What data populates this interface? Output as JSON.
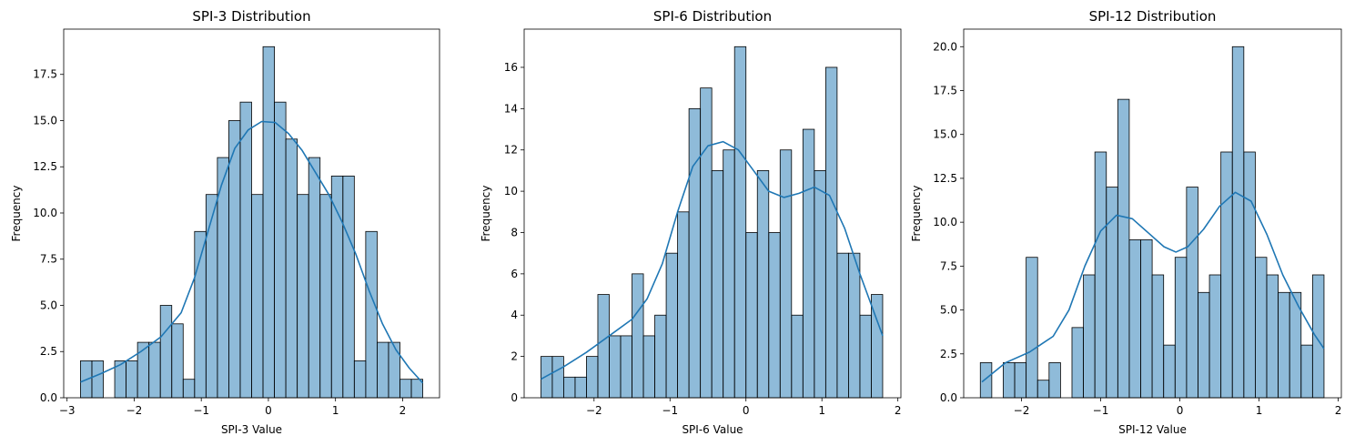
{
  "chart_data": [
    {
      "type": "histogram",
      "title": "SPI-3 Distribution",
      "xlabel": "SPI-3 Value",
      "ylabel": "Frequency",
      "xlim": [
        -3.05,
        2.55
      ],
      "ylim": [
        0,
        19.95
      ],
      "xticks": [
        -3,
        -2,
        -1,
        0,
        1,
        2
      ],
      "yticks": [
        0,
        2.5,
        5,
        7.5,
        10,
        12.5,
        15,
        17.5
      ],
      "bin_start": -2.8,
      "bin_width": 0.17,
      "counts": [
        2,
        2,
        0,
        2,
        2,
        3,
        3,
        5,
        4,
        1,
        9,
        11,
        13,
        15,
        16,
        11,
        19,
        16,
        14,
        11,
        13,
        11,
        12,
        12,
        2,
        9,
        3,
        3,
        1,
        1
      ],
      "kde": [
        [
          -2.8,
          0.85
        ],
        [
          -2.5,
          1.3
        ],
        [
          -2.2,
          1.8
        ],
        [
          -1.9,
          2.5
        ],
        [
          -1.6,
          3.3
        ],
        [
          -1.3,
          4.6
        ],
        [
          -1.1,
          6.5
        ],
        [
          -0.9,
          9.0
        ],
        [
          -0.7,
          11.5
        ],
        [
          -0.5,
          13.5
        ],
        [
          -0.3,
          14.5
        ],
        [
          -0.1,
          14.95
        ],
        [
          0.1,
          14.9
        ],
        [
          0.3,
          14.3
        ],
        [
          0.5,
          13.4
        ],
        [
          0.7,
          12.2
        ],
        [
          0.9,
          11.0
        ],
        [
          1.1,
          9.5
        ],
        [
          1.3,
          7.8
        ],
        [
          1.5,
          5.8
        ],
        [
          1.7,
          4.0
        ],
        [
          1.9,
          2.6
        ],
        [
          2.1,
          1.6
        ],
        [
          2.3,
          0.8
        ]
      ],
      "bar_color": "#1f77b4",
      "line_color": "#1f77b4"
    },
    {
      "type": "histogram",
      "title": "SPI-6 Distribution",
      "xlabel": "SPI-6 Value",
      "ylabel": "Frequency",
      "xlim": [
        -2.92,
        2.04
      ],
      "ylim": [
        0,
        17.85
      ],
      "xticks": [
        -2,
        -1,
        0,
        1,
        2
      ],
      "yticks": [
        0,
        2,
        4,
        6,
        8,
        10,
        12,
        14,
        16
      ],
      "bin_start": -2.7,
      "bin_width": 0.15,
      "counts": [
        2,
        2,
        1,
        1,
        2,
        5,
        3,
        3,
        6,
        3,
        4,
        7,
        9,
        14,
        15,
        11,
        12,
        17,
        8,
        11,
        8,
        12,
        4,
        13,
        11,
        16,
        7,
        7,
        4,
        5
      ],
      "kde": [
        [
          -2.7,
          0.9
        ],
        [
          -2.4,
          1.5
        ],
        [
          -2.1,
          2.2
        ],
        [
          -1.8,
          3.0
        ],
        [
          -1.5,
          3.8
        ],
        [
          -1.3,
          4.8
        ],
        [
          -1.1,
          6.5
        ],
        [
          -0.9,
          9.0
        ],
        [
          -0.7,
          11.2
        ],
        [
          -0.5,
          12.2
        ],
        [
          -0.3,
          12.4
        ],
        [
          -0.1,
          12.0
        ],
        [
          0.1,
          11.0
        ],
        [
          0.3,
          10.0
        ],
        [
          0.5,
          9.7
        ],
        [
          0.7,
          9.9
        ],
        [
          0.9,
          10.2
        ],
        [
          1.1,
          9.8
        ],
        [
          1.3,
          8.2
        ],
        [
          1.5,
          6.0
        ],
        [
          1.7,
          4.0
        ],
        [
          1.8,
          3.0
        ]
      ],
      "bar_color": "#1f77b4",
      "line_color": "#1f77b4"
    },
    {
      "type": "histogram",
      "title": "SPI-12 Distribution",
      "xlabel": "SPI-12 Value",
      "ylabel": "Frequency",
      "xlim": [
        -2.73,
        2.04
      ],
      "ylim": [
        0,
        21.0
      ],
      "xticks": [
        -2,
        -1,
        0,
        1,
        2
      ],
      "yticks": [
        0,
        2.5,
        5,
        7.5,
        10,
        12.5,
        15,
        17.5,
        20
      ],
      "bin_start": -2.52,
      "bin_width": 0.1447,
      "counts": [
        2,
        0,
        2,
        2,
        8,
        1,
        2,
        0,
        4,
        7,
        14,
        12,
        17,
        9,
        9,
        7,
        3,
        8,
        12,
        6,
        7,
        14,
        20,
        14,
        8,
        7,
        6,
        6,
        3,
        7
      ],
      "kde": [
        [
          -2.5,
          0.9
        ],
        [
          -2.2,
          2.0
        ],
        [
          -1.9,
          2.6
        ],
        [
          -1.6,
          3.5
        ],
        [
          -1.4,
          5.0
        ],
        [
          -1.2,
          7.5
        ],
        [
          -1.0,
          9.5
        ],
        [
          -0.8,
          10.4
        ],
        [
          -0.6,
          10.2
        ],
        [
          -0.4,
          9.4
        ],
        [
          -0.2,
          8.6
        ],
        [
          -0.05,
          8.3
        ],
        [
          0.1,
          8.6
        ],
        [
          0.3,
          9.6
        ],
        [
          0.5,
          10.9
        ],
        [
          0.7,
          11.7
        ],
        [
          0.9,
          11.2
        ],
        [
          1.1,
          9.3
        ],
        [
          1.3,
          7.0
        ],
        [
          1.5,
          5.2
        ],
        [
          1.7,
          3.6
        ],
        [
          1.82,
          2.8
        ]
      ],
      "bar_color": "#1f77b4",
      "line_color": "#1f77b4"
    }
  ]
}
